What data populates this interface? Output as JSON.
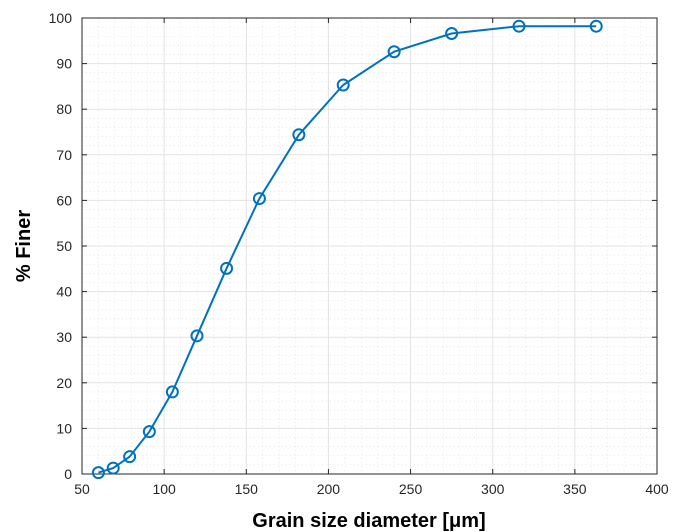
{
  "chart_data": {
    "type": "line",
    "title": "",
    "xlabel": "Grain size diameter [μm]",
    "ylabel": "% Finer",
    "xlim": [
      50,
      400
    ],
    "ylim": [
      0,
      100
    ],
    "xticks": [
      50,
      100,
      150,
      200,
      250,
      300,
      350,
      400
    ],
    "yticks": [
      0,
      10,
      20,
      30,
      40,
      50,
      60,
      70,
      80,
      90,
      100
    ],
    "grid": true,
    "minor_grid": true,
    "marker": "circle",
    "line_color": "#0072bd",
    "series": [
      {
        "x": [
          60,
          69,
          79,
          91,
          105,
          120,
          138,
          158,
          182,
          209,
          240,
          275,
          316,
          363
        ],
        "y": [
          0.3,
          1.3,
          3.8,
          9.3,
          18,
          30.3,
          45.1,
          60.4,
          74.4,
          85.3,
          92.6,
          96.6,
          98.2,
          98.2
        ]
      }
    ]
  }
}
